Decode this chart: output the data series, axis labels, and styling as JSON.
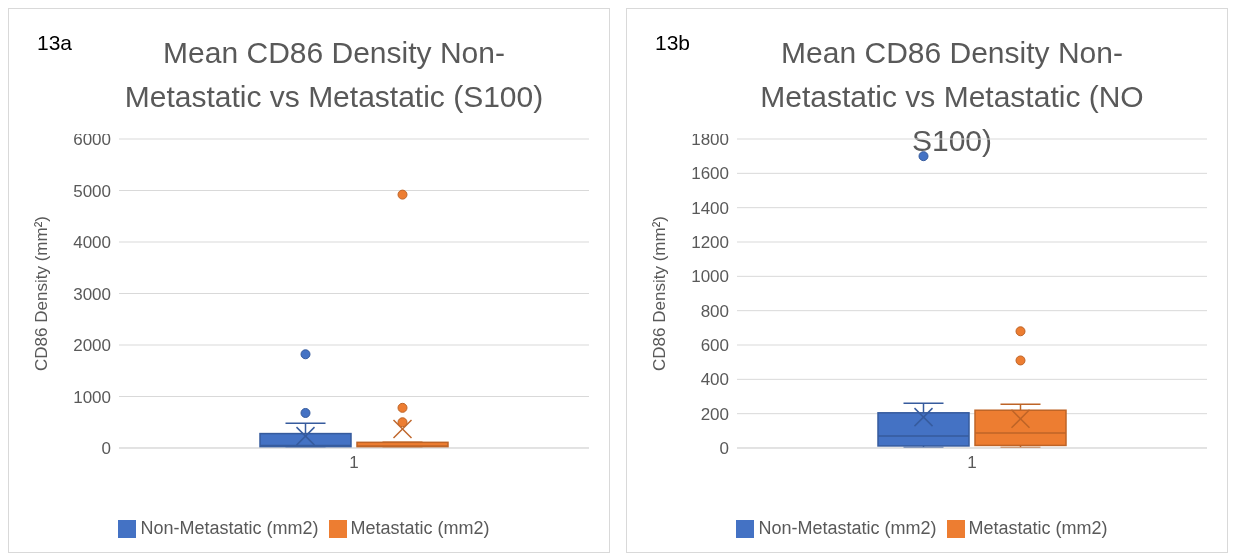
{
  "chart_data": [
    {
      "type": "box",
      "title": "Mean CD86 Density Non-Metastatic vs Metastatic (S100)",
      "annotations": [
        "13a"
      ],
      "ylabel": "CD86 Density (mm²)",
      "categories": [
        "1"
      ],
      "ylim": [
        0,
        6000
      ],
      "yticks": [
        0,
        1000,
        2000,
        3000,
        4000,
        5000,
        6000
      ],
      "grid": "y",
      "legend": "bottom",
      "series": [
        {
          "name": "Non-Metastatic (mm2)",
          "color": "#4472c4",
          "boxes": [
            {
              "low": 10,
              "q1": 20,
              "median": 50,
              "q3": 280,
              "high": 480,
              "mean": 230,
              "outliers": [
                680,
                1820
              ]
            }
          ]
        },
        {
          "name": "Metastatic (mm2)",
          "color": "#ed7d31",
          "boxes": [
            {
              "low": 10,
              "q1": 20,
              "median": 40,
              "q3": 110,
              "high": 110,
              "mean": 370,
              "outliers": [
                500,
                780,
                4920
              ]
            }
          ]
        }
      ]
    },
    {
      "type": "box",
      "title": "Mean CD86 Density Non-Metastatic vs Metastatic (NO S100)",
      "annotations": [
        "13b"
      ],
      "ylabel": "CD86 Density (mm²)",
      "categories": [
        "1"
      ],
      "ylim": [
        0,
        1800
      ],
      "yticks": [
        0,
        200,
        400,
        600,
        800,
        1000,
        1200,
        1400,
        1600,
        1800
      ],
      "grid": "y",
      "legend": "bottom",
      "series": [
        {
          "name": "Non-Metastatic (mm2)",
          "color": "#4472c4",
          "boxes": [
            {
              "low": 3,
              "q1": 12,
              "median": 70,
              "q3": 205,
              "high": 260,
              "mean": 180,
              "outliers": [
                1700
              ]
            }
          ]
        },
        {
          "name": "Metastatic (mm2)",
          "color": "#ed7d31",
          "boxes": [
            {
              "low": 3,
              "q1": 15,
              "median": 88,
              "q3": 220,
              "high": 255,
              "mean": 170,
              "outliers": [
                510,
                680
              ]
            }
          ]
        }
      ]
    }
  ]
}
